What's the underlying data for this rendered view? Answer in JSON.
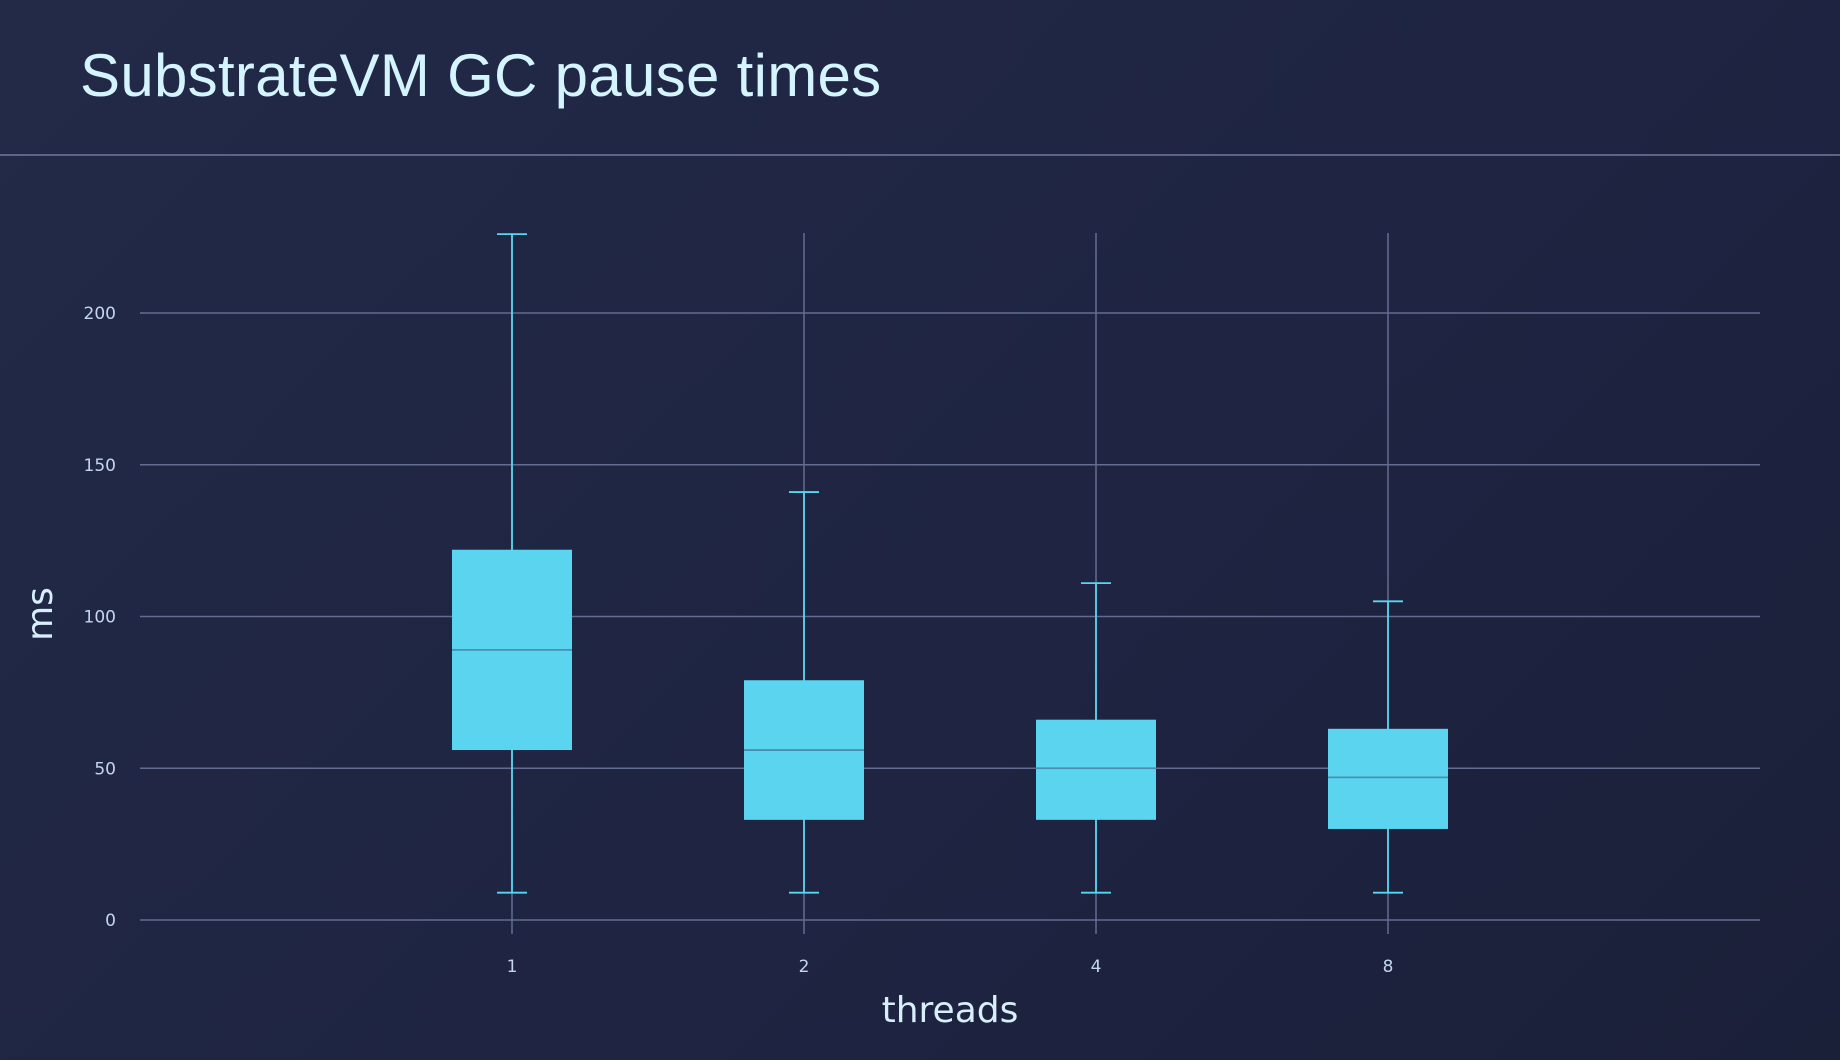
{
  "slide": {
    "title": "SubstrateVM GC pause times"
  },
  "colors": {
    "background": "#1f2644",
    "box_fill": "#5bd5ef",
    "whisker": "#5bd5ef",
    "grid": "#636d91",
    "median": "#4a8fb0",
    "text": "#d4f4ff"
  },
  "chart_data": {
    "type": "box",
    "title": "SubstrateVM GC pause times",
    "xlabel": "threads",
    "ylabel": "ms",
    "categories": [
      "1",
      "2",
      "4",
      "8"
    ],
    "ylim": [
      0,
      225
    ],
    "yticks": [
      0,
      50,
      100,
      150,
      200
    ],
    "grid": true,
    "boxes": [
      {
        "category": "1",
        "min": 9,
        "q1": 56,
        "median": 89,
        "q3": 122,
        "max": 226
      },
      {
        "category": "2",
        "min": 9,
        "q1": 33,
        "median": 56,
        "q3": 79,
        "max": 141
      },
      {
        "category": "4",
        "min": 9,
        "q1": 33,
        "median": 50,
        "q3": 66,
        "max": 111
      },
      {
        "category": "8",
        "min": 9,
        "q1": 30,
        "median": 47,
        "q3": 63,
        "max": 105
      }
    ]
  }
}
